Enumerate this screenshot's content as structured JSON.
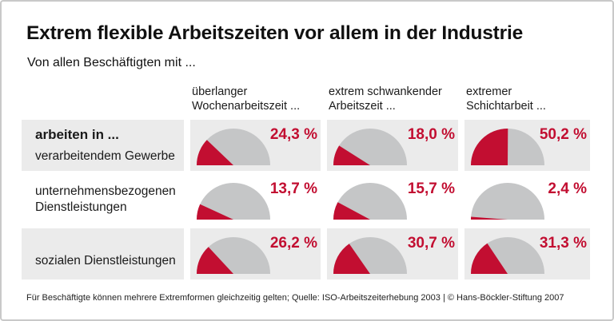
{
  "chart_data": {
    "type": "pie",
    "variant": "semicircle-gauge-grid",
    "title": "Extrem flexible Arbeitszeiten vor allem in der Industrie",
    "subtitle": "Von allen Beschäftigten mit ...",
    "unit": "%",
    "gauge_max": 100,
    "columns": [
      {
        "lines": [
          "überlanger",
          "Wochenarbeitszeit ..."
        ]
      },
      {
        "lines": [
          "extrem schwankender",
          "Arbeitszeit ..."
        ]
      },
      {
        "lines": [
          "extremer",
          "Schichtarbeit ..."
        ]
      }
    ],
    "rows": [
      {
        "label_lines": [
          "arbeiten in ...",
          "verarbeitendem Gewerbe"
        ],
        "values": [
          24.3,
          18.0,
          50.2
        ],
        "value_labels": [
          "24,3 %",
          "18,0 %",
          "50,2 %"
        ]
      },
      {
        "label_lines": [
          "unternehmensbezogenen",
          "Dienstleistungen"
        ],
        "values": [
          13.7,
          15.7,
          2.4
        ],
        "value_labels": [
          "13,7 %",
          "15,7 %",
          "2,4 %"
        ]
      },
      {
        "label_lines": [
          "sozialen Dienstleistungen"
        ],
        "values": [
          26.2,
          30.7,
          31.3
        ],
        "value_labels": [
          "26,2 %",
          "30,7 %",
          "31,3 %"
        ]
      }
    ],
    "colors": {
      "filled": "#c20e31",
      "empty": "#c5c6c7",
      "row_band": "#ebebeb",
      "text": "#1a1a1a",
      "border": "#c9c9c9"
    },
    "footnote": "Für Beschäftigte können mehrere Extremformen gleichzeitig gelten; Quelle: ISO-Arbeitszeiterhebung 2003 | © Hans-Böckler-Stiftung 2007",
    "legend_position": "none",
    "grid": false
  }
}
